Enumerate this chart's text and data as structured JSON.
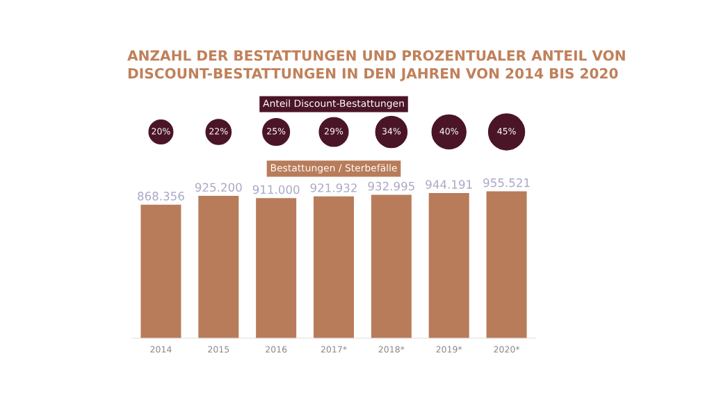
{
  "chart_data": [
    {
      "type": "other",
      "title": "ANZAHL DER BESTATTUNGEN UND PROZENTUALER ANTEIL VON DISCOUNT-BESTATTUNGEN IN DEN JAHREN VON 2014 BIS 2020",
      "subtitle": "Anteil Discount-Bestattungen",
      "categories": [
        null,
        null,
        null,
        null,
        null,
        null,
        null
      ],
      "values": [
        20,
        22,
        25,
        29,
        34,
        40,
        45
      ],
      "value_labels": [
        "20%",
        "22%",
        "25%",
        "29%",
        "34%",
        "40%",
        "45%"
      ],
      "color": "#4a1526"
    },
    {
      "type": "bar",
      "title": "Bestattungen / Sterbefälle",
      "categories": [
        "2014",
        "2015",
        "2016",
        "2017*",
        "2018*",
        "2019*",
        "2020*"
      ],
      "values": [
        868356,
        925200,
        911000,
        921932,
        932995,
        944191,
        955521
      ],
      "value_labels": [
        "868.356",
        "925.200",
        "911.000",
        "921.932",
        "932.995",
        "944.191",
        "955.521"
      ],
      "color": "#b87c5a"
    }
  ]
}
